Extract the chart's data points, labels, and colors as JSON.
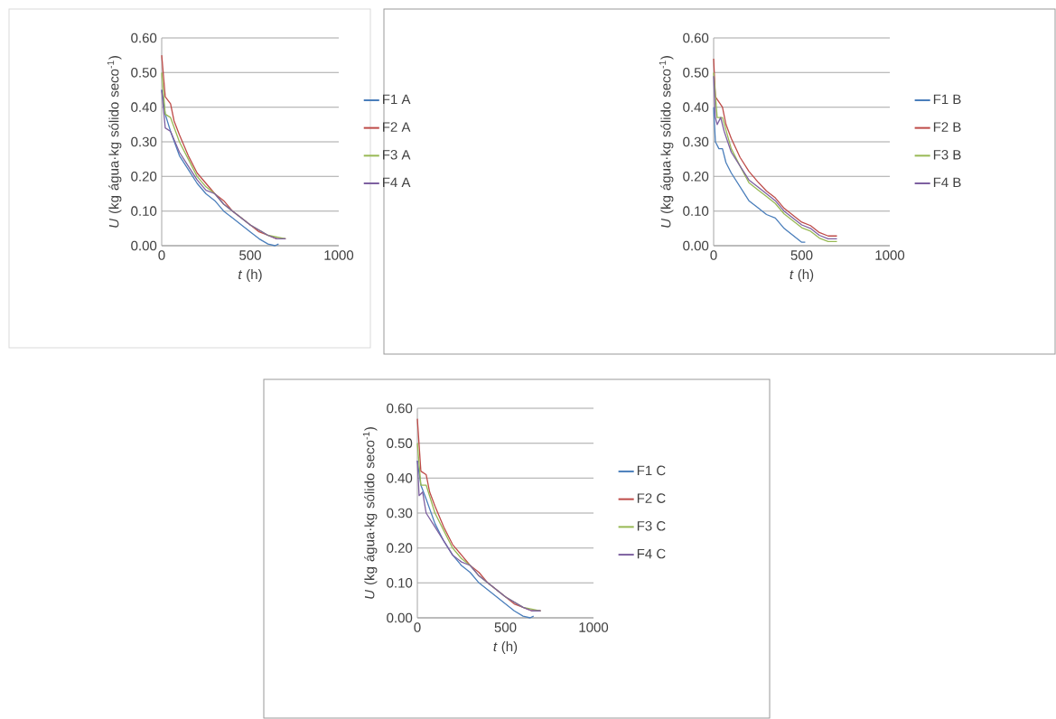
{
  "chart_data": [
    {
      "type": "line",
      "xlabel": "*t* (h)",
      "ylabel": "*U* (kg água·kg sólido seco$^{-1}$)",
      "xlim": [
        0,
        1000
      ],
      "ylim": [
        0,
        0.6
      ],
      "xticks": [
        0,
        500,
        1000
      ],
      "yticks": [
        {
          "value": 0,
          "label": "0.00"
        },
        {
          "value": 0.1,
          "label": "0.10"
        },
        {
          "value": 0.2,
          "label": "0.20"
        },
        {
          "value": 0.3,
          "label": "0.30"
        },
        {
          "value": 0.4,
          "label": "0.40"
        },
        {
          "value": 0.5,
          "label": "0.50"
        },
        {
          "value": 0.6,
          "label": "0.60"
        }
      ],
      "grid": "y",
      "legend": "right",
      "series": [
        {
          "name": "F1 A",
          "color": "#4a7ebb",
          "x": [
            0,
            20,
            50,
            100,
            150,
            200,
            250,
            300,
            350,
            400,
            450,
            500,
            550,
            600,
            640,
            660
          ],
          "values": [
            0.45,
            0.38,
            0.33,
            0.26,
            0.22,
            0.18,
            0.15,
            0.13,
            0.1,
            0.08,
            0.06,
            0.04,
            0.02,
            0.005,
            0.0,
            0.005
          ]
        },
        {
          "name": "F2 A",
          "color": "#be4b48",
          "x": [
            0,
            20,
            50,
            70,
            100,
            150,
            200,
            250,
            300,
            350,
            400,
            450,
            500,
            550,
            600,
            650,
            700
          ],
          "values": [
            0.55,
            0.43,
            0.41,
            0.36,
            0.32,
            0.26,
            0.21,
            0.18,
            0.15,
            0.13,
            0.1,
            0.08,
            0.06,
            0.04,
            0.03,
            0.02,
            0.02
          ]
        },
        {
          "name": "F3 A",
          "color": "#98b954",
          "x": [
            0,
            20,
            50,
            100,
            150,
            200,
            250,
            300,
            350,
            400,
            450,
            500,
            600,
            700
          ],
          "values": [
            0.5,
            0.38,
            0.37,
            0.3,
            0.25,
            0.2,
            0.17,
            0.15,
            0.12,
            0.1,
            0.08,
            0.06,
            0.03,
            0.02
          ]
        },
        {
          "name": "F4 A",
          "color": "#7d60a0",
          "x": [
            0,
            20,
            50,
            100,
            150,
            200,
            250,
            300,
            350,
            400,
            500,
            600,
            650,
            700
          ],
          "values": [
            0.45,
            0.34,
            0.33,
            0.27,
            0.23,
            0.19,
            0.16,
            0.15,
            0.12,
            0.1,
            0.06,
            0.03,
            0.02,
            0.02
          ]
        }
      ]
    },
    {
      "type": "line",
      "xlabel": "*t* (h)",
      "ylabel": "*U* (kg água·kg sólido seco$^{-1}$)",
      "xlim": [
        0,
        1000
      ],
      "ylim": [
        0,
        0.6
      ],
      "xticks": [
        0,
        500,
        1000
      ],
      "yticks": [
        {
          "value": 0,
          "label": "0.00"
        },
        {
          "value": 0.1,
          "label": "0.10"
        },
        {
          "value": 0.2,
          "label": "0.20"
        },
        {
          "value": 0.3,
          "label": "0.30"
        },
        {
          "value": 0.4,
          "label": "0.40"
        },
        {
          "value": 0.5,
          "label": "0.50"
        },
        {
          "value": 0.6,
          "label": "0.60"
        }
      ],
      "grid": "y",
      "legend": "right",
      "series": [
        {
          "name": "F1 B",
          "color": "#4a7ebb",
          "x": [
            0,
            10,
            30,
            50,
            70,
            100,
            150,
            200,
            250,
            300,
            350,
            400,
            450,
            500,
            520
          ],
          "values": [
            0.4,
            0.3,
            0.28,
            0.28,
            0.24,
            0.21,
            0.17,
            0.13,
            0.11,
            0.09,
            0.08,
            0.05,
            0.03,
            0.01,
            0.01
          ]
        },
        {
          "name": "F2 B",
          "color": "#be4b48",
          "x": [
            0,
            10,
            50,
            70,
            100,
            150,
            200,
            250,
            300,
            350,
            400,
            450,
            500,
            550,
            600,
            650,
            700
          ],
          "values": [
            0.54,
            0.43,
            0.4,
            0.35,
            0.31,
            0.255,
            0.215,
            0.185,
            0.158,
            0.138,
            0.108,
            0.088,
            0.068,
            0.058,
            0.038,
            0.028,
            0.028
          ]
        },
        {
          "name": "F3 B",
          "color": "#98b954",
          "x": [
            0,
            20,
            50,
            100,
            150,
            200,
            250,
            300,
            350,
            400,
            450,
            500,
            550,
            600,
            650,
            700
          ],
          "values": [
            0.5,
            0.37,
            0.37,
            0.28,
            0.23,
            0.182,
            0.162,
            0.142,
            0.122,
            0.092,
            0.072,
            0.052,
            0.042,
            0.022,
            0.012,
            0.012
          ]
        },
        {
          "name": "F4 B",
          "color": "#7d60a0",
          "x": [
            0,
            10,
            20,
            40,
            60,
            100,
            150,
            200,
            250,
            300,
            350,
            400,
            450,
            500,
            550,
            600,
            650,
            700
          ],
          "values": [
            0.49,
            0.37,
            0.35,
            0.37,
            0.33,
            0.27,
            0.23,
            0.19,
            0.17,
            0.15,
            0.13,
            0.1,
            0.08,
            0.06,
            0.05,
            0.03,
            0.02,
            0.02
          ]
        }
      ]
    },
    {
      "type": "line",
      "xlabel": "*t* (h)",
      "ylabel": "*U* (kg água·kg sólido seco$^{-1}$)",
      "xlim": [
        0,
        1000
      ],
      "ylim": [
        0,
        0.6
      ],
      "xticks": [
        0,
        500,
        1000
      ],
      "yticks": [
        {
          "value": 0,
          "label": "0.00"
        },
        {
          "value": 0.1,
          "label": "0.10"
        },
        {
          "value": 0.2,
          "label": "0.20"
        },
        {
          "value": 0.3,
          "label": "0.30"
        },
        {
          "value": 0.4,
          "label": "0.40"
        },
        {
          "value": 0.5,
          "label": "0.50"
        },
        {
          "value": 0.6,
          "label": "0.60"
        }
      ],
      "grid": "y",
      "legend": "right",
      "series": [
        {
          "name": "F1 C",
          "color": "#4a7ebb",
          "x": [
            0,
            20,
            50,
            100,
            150,
            200,
            250,
            300,
            350,
            400,
            450,
            500,
            550,
            600,
            640,
            660
          ],
          "values": [
            0.45,
            0.38,
            0.34,
            0.27,
            0.22,
            0.18,
            0.15,
            0.13,
            0.1,
            0.08,
            0.06,
            0.04,
            0.02,
            0.005,
            0.0,
            0.005
          ]
        },
        {
          "name": "F2 C",
          "color": "#be4b48",
          "x": [
            0,
            20,
            50,
            70,
            100,
            150,
            200,
            250,
            300,
            350,
            400,
            450,
            500,
            550,
            600,
            650,
            700
          ],
          "values": [
            0.57,
            0.42,
            0.41,
            0.36,
            0.32,
            0.26,
            0.21,
            0.18,
            0.15,
            0.13,
            0.1,
            0.08,
            0.06,
            0.04,
            0.03,
            0.02,
            0.02
          ]
        },
        {
          "name": "F3 C",
          "color": "#98b954",
          "x": [
            0,
            20,
            50,
            100,
            150,
            200,
            250,
            300,
            350,
            400,
            450,
            500,
            600,
            700
          ],
          "values": [
            0.5,
            0.38,
            0.38,
            0.3,
            0.25,
            0.2,
            0.17,
            0.15,
            0.12,
            0.1,
            0.08,
            0.06,
            0.03,
            0.02
          ]
        },
        {
          "name": "F4 C",
          "color": "#7d60a0",
          "x": [
            0,
            10,
            30,
            50,
            100,
            150,
            200,
            250,
            300,
            350,
            400,
            500,
            600,
            650,
            700
          ],
          "values": [
            0.45,
            0.35,
            0.36,
            0.3,
            0.26,
            0.22,
            0.18,
            0.16,
            0.15,
            0.12,
            0.1,
            0.06,
            0.03,
            0.02,
            0.02
          ]
        }
      ]
    }
  ]
}
